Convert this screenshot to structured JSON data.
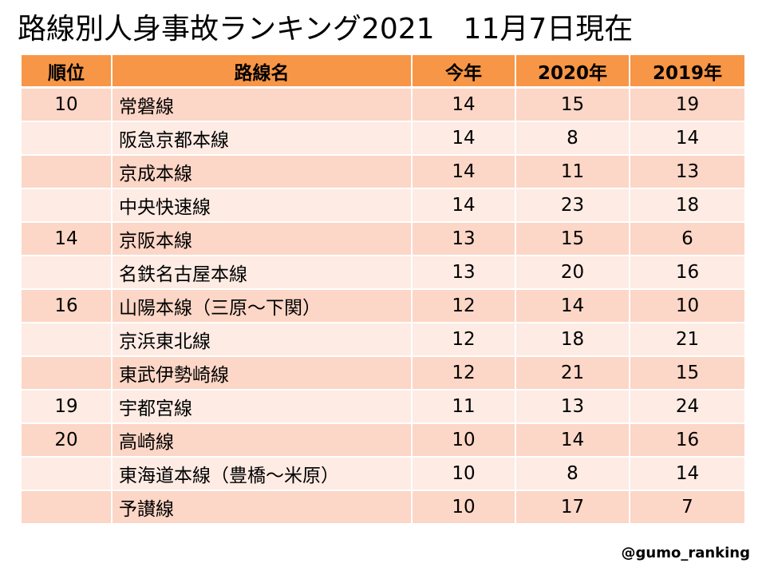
{
  "title": "路線別人身事故ランキング2021　11月7日現在",
  "table": {
    "headers": [
      "順位",
      "路線名",
      "今年",
      "2020年",
      "2019年"
    ],
    "rows": [
      {
        "rank": "10",
        "line": "常磐線",
        "this_year": "14",
        "y2020": "15",
        "y2019": "19"
      },
      {
        "rank": "",
        "line": "阪急京都本線",
        "this_year": "14",
        "y2020": "8",
        "y2019": "14"
      },
      {
        "rank": "",
        "line": "京成本線",
        "this_year": "14",
        "y2020": "11",
        "y2019": "13"
      },
      {
        "rank": "",
        "line": "中央快速線",
        "this_year": "14",
        "y2020": "23",
        "y2019": "18"
      },
      {
        "rank": "14",
        "line": "京阪本線",
        "this_year": "13",
        "y2020": "15",
        "y2019": "6"
      },
      {
        "rank": "",
        "line": "名鉄名古屋本線",
        "this_year": "13",
        "y2020": "20",
        "y2019": "16"
      },
      {
        "rank": "16",
        "line": "山陽本線（三原～下関）",
        "this_year": "12",
        "y2020": "14",
        "y2019": "10"
      },
      {
        "rank": "",
        "line": "京浜東北線",
        "this_year": "12",
        "y2020": "18",
        "y2019": "21"
      },
      {
        "rank": "",
        "line": "東武伊勢崎線",
        "this_year": "12",
        "y2020": "21",
        "y2019": "15"
      },
      {
        "rank": "19",
        "line": "宇都宮線",
        "this_year": "11",
        "y2020": "13",
        "y2019": "24"
      },
      {
        "rank": "20",
        "line": "高崎線",
        "this_year": "10",
        "y2020": "14",
        "y2019": "16"
      },
      {
        "rank": "",
        "line": "東海道本線（豊橋～米原）",
        "this_year": "10",
        "y2020": "8",
        "y2019": "14"
      },
      {
        "rank": "",
        "line": "予讃線",
        "this_year": "10",
        "y2020": "17",
        "y2019": "7"
      }
    ]
  },
  "credit": "@gumo_ranking",
  "colors": {
    "header": "#f79646",
    "row_odd": "#fcd6c6",
    "row_even": "#fdebe4"
  }
}
